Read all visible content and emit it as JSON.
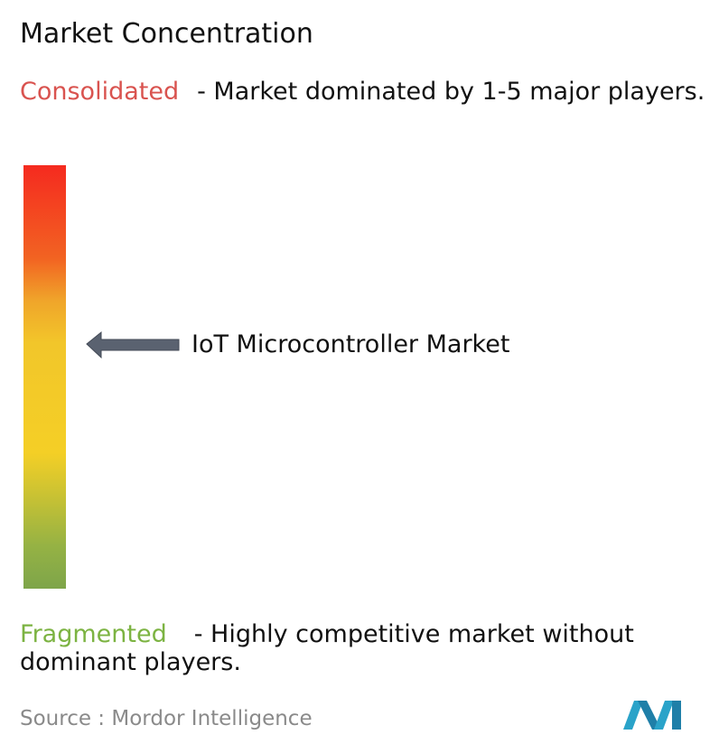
{
  "title": "Market Concentration",
  "consolidated": {
    "label": "Consolidated",
    "description": "- Market dominated by 1-5 major players."
  },
  "marker": {
    "label": "IoT Microcontroller Market"
  },
  "fragmented": {
    "label": "Fragmented",
    "description": "- Highly competitive market without dominant players."
  },
  "source": {
    "label": "Source :",
    "value": "Mordor Intelligence"
  }
}
